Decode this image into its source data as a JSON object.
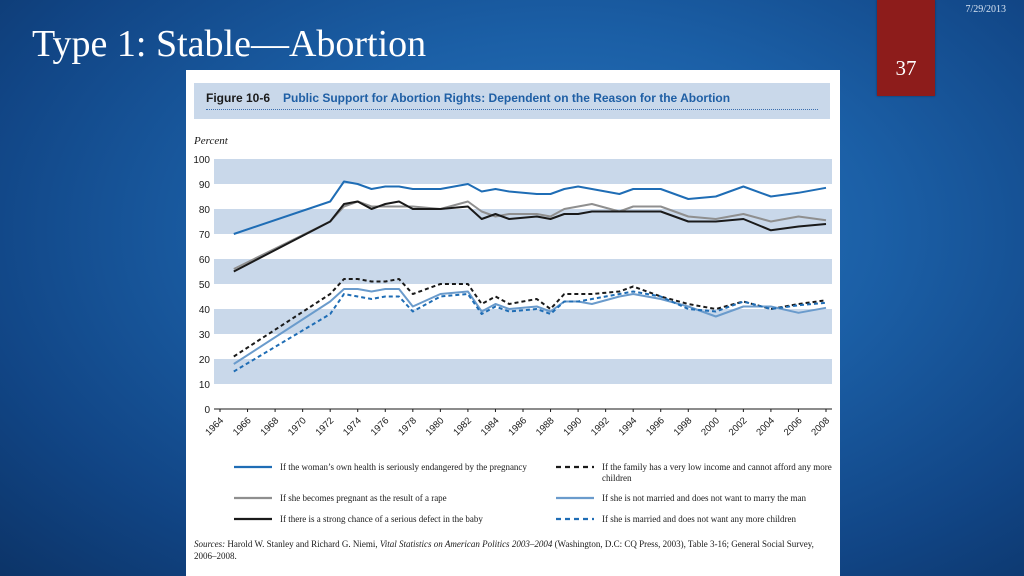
{
  "slide": {
    "title": "Type 1: Stable—Abortion",
    "date": "7/29/2013",
    "page_number": "37",
    "background_color": "#1b5fa6",
    "tab_color": "#8d1c1b"
  },
  "figure": {
    "label": "Figure 10-6",
    "title": "Public Support for Abortion Rights: Dependent on the Reason for the Abortion",
    "sources_label": "Sources:",
    "sources_authors": "Harold W. Stanley and Richard G. Niemi, ",
    "sources_book": "Vital Statistics on American Politics 2003–2004",
    "sources_rest": " (Washington, D.C: CQ Press, 2003), Table 3-16; General Social Survey, 2006–2008."
  },
  "chart_data": {
    "type": "line",
    "ylabel": "Percent",
    "xlabel": "",
    "ylim": [
      0,
      100
    ],
    "yticks": [
      0,
      10,
      20,
      30,
      40,
      50,
      60,
      70,
      80,
      90,
      100
    ],
    "xlim": [
      1964,
      2008
    ],
    "xticks": [
      "1964",
      "1966",
      "1968",
      "1970",
      "1972",
      "1974",
      "1976",
      "1978",
      "1980",
      "1982",
      "1984",
      "1986",
      "1988",
      "1990",
      "1992",
      "1994",
      "1996",
      "1998",
      "2000",
      "2002",
      "2004",
      "2006",
      "2008"
    ],
    "grid": "alternating horizontal bands",
    "band_color": "#c9d8ea",
    "legend_position": "bottom",
    "series": [
      {
        "name": "If the woman’s own health is seriously endangered by the pregnancy",
        "color": "#1f6db5",
        "dash": "solid",
        "x": [
          1965,
          1972,
          1973,
          1974,
          1975,
          1976,
          1977,
          1978,
          1980,
          1982,
          1983,
          1984,
          1985,
          1987,
          1988,
          1989,
          1990,
          1991,
          1993,
          1994,
          1996,
          1998,
          2000,
          2002,
          2004,
          2006,
          2008
        ],
        "y": [
          70,
          83,
          91,
          90,
          88,
          89,
          89,
          88,
          88,
          90,
          87,
          88,
          87,
          86,
          86,
          88,
          89,
          88,
          86,
          88,
          88,
          84,
          85,
          89,
          85,
          86.5,
          88.5
        ]
      },
      {
        "name": "If she becomes pregnant as the result of a rape",
        "color": "#8f8f8f",
        "dash": "solid",
        "x": [
          1965,
          1972,
          1973,
          1974,
          1975,
          1976,
          1977,
          1978,
          1980,
          1982,
          1983,
          1984,
          1985,
          1987,
          1988,
          1989,
          1990,
          1991,
          1993,
          1994,
          1996,
          1998,
          2000,
          2002,
          2004,
          2006,
          2008
        ],
        "y": [
          56,
          75,
          81,
          83,
          81,
          81,
          81,
          81,
          80,
          83,
          79,
          77,
          78,
          78,
          77,
          80,
          81,
          82,
          79,
          81,
          81,
          77,
          76,
          78,
          75,
          77,
          75.5
        ]
      },
      {
        "name": "If there is a strong chance of a serious defect in the baby",
        "color": "#1a1a1a",
        "dash": "solid",
        "x": [
          1965,
          1972,
          1973,
          1974,
          1975,
          1976,
          1977,
          1978,
          1980,
          1982,
          1983,
          1984,
          1985,
          1987,
          1988,
          1989,
          1990,
          1991,
          1993,
          1994,
          1996,
          1998,
          2000,
          2002,
          2004,
          2006,
          2008
        ],
        "y": [
          55,
          75,
          82,
          83,
          80,
          82,
          83,
          80,
          80,
          81,
          76,
          78,
          76,
          77,
          76,
          78,
          78,
          79,
          79,
          79,
          79,
          75,
          75,
          76,
          71.5,
          73,
          74
        ]
      },
      {
        "name": "If the family has a very low income and cannot afford any more children",
        "color": "#1a1a1a",
        "dash": "dashed",
        "x": [
          1965,
          1972,
          1973,
          1974,
          1975,
          1976,
          1977,
          1978,
          1980,
          1982,
          1983,
          1984,
          1985,
          1987,
          1988,
          1989,
          1990,
          1991,
          1993,
          1994,
          1996,
          1998,
          2000,
          2002,
          2004,
          2006,
          2008
        ],
        "y": [
          21,
          46,
          52,
          52,
          51,
          51,
          52,
          46,
          50,
          50,
          42,
          45,
          42,
          44,
          40,
          46,
          46,
          46,
          47,
          49,
          45,
          42,
          40,
          43,
          40,
          42,
          43.5
        ]
      },
      {
        "name": "If she is not married and does not want to marry the man",
        "color": "#6a9bcc",
        "dash": "solid",
        "x": [
          1965,
          1972,
          1973,
          1974,
          1975,
          1976,
          1977,
          1978,
          1980,
          1982,
          1983,
          1984,
          1985,
          1987,
          1988,
          1989,
          1990,
          1991,
          1993,
          1994,
          1996,
          1998,
          2000,
          2002,
          2004,
          2006,
          2008
        ],
        "y": [
          18,
          43,
          48,
          48,
          47,
          48,
          48,
          41,
          46,
          47,
          39,
          42,
          40,
          41,
          39,
          43,
          43,
          42,
          45,
          46,
          44,
          41,
          37,
          41,
          41,
          38.5,
          40.5
        ]
      },
      {
        "name": "If she is married and does not want any more children",
        "color": "#1f6db5",
        "dash": "dashed",
        "x": [
          1965,
          1972,
          1973,
          1974,
          1975,
          1976,
          1977,
          1978,
          1980,
          1982,
          1983,
          1984,
          1985,
          1987,
          1988,
          1989,
          1990,
          1991,
          1993,
          1994,
          1996,
          1998,
          2000,
          2002,
          2004,
          2006,
          2008
        ],
        "y": [
          15,
          38,
          46,
          45,
          44,
          45,
          45,
          39,
          45,
          46,
          38,
          41,
          39,
          40,
          38,
          43,
          43,
          44,
          46,
          47,
          45,
          40,
          39,
          43,
          40,
          41.5,
          42.5
        ]
      }
    ]
  }
}
